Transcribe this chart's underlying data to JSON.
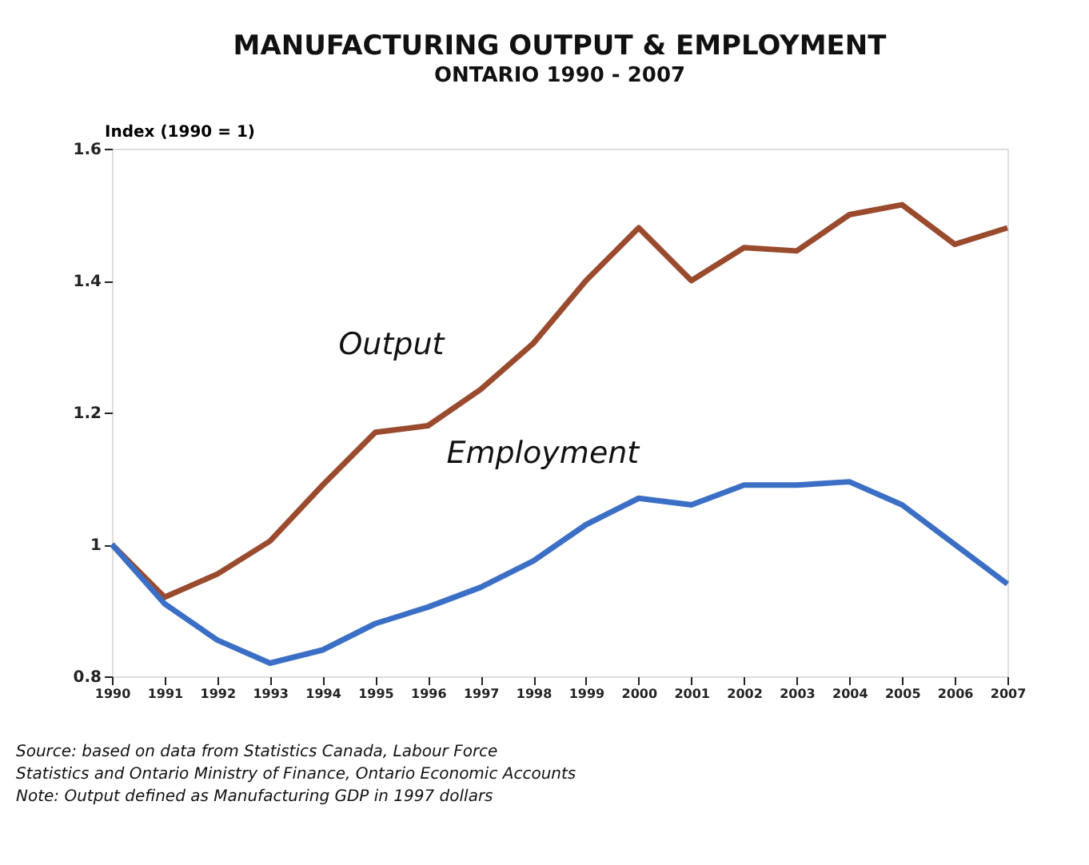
{
  "chart_data": {
    "type": "line",
    "title": "MANUFACTURING OUTPUT & EMPLOYMENT",
    "subtitle": "ONTARIO 1990 - 2007",
    "ylabel": "Index (1990 = 1)",
    "x": [
      1990,
      1991,
      1992,
      1993,
      1994,
      1995,
      1996,
      1997,
      1998,
      1999,
      2000,
      2001,
      2002,
      2003,
      2004,
      2005,
      2006,
      2007
    ],
    "series": [
      {
        "name": "Output",
        "color": "#9a4b2e",
        "values": [
          1.0,
          0.92,
          0.955,
          1.005,
          1.09,
          1.17,
          1.18,
          1.235,
          1.305,
          1.4,
          1.48,
          1.4,
          1.45,
          1.445,
          1.5,
          1.515,
          1.455,
          1.48
        ]
      },
      {
        "name": "Employment",
        "color": "#3b6fc6",
        "values": [
          1.0,
          0.91,
          0.855,
          0.82,
          0.84,
          0.88,
          0.905,
          0.935,
          0.975,
          1.03,
          1.07,
          1.06,
          1.09,
          1.09,
          1.095,
          1.06,
          1.0,
          0.94
        ]
      }
    ],
    "xlim": [
      1990,
      2007
    ],
    "xticks": [
      1990,
      1991,
      1992,
      1993,
      1994,
      1995,
      1996,
      1997,
      1998,
      1999,
      2000,
      2001,
      2002,
      2003,
      2004,
      2005,
      2006,
      2007
    ],
    "ylim": [
      0.8,
      1.6
    ],
    "yticks": [
      0.8,
      1,
      1.2,
      1.4,
      1.6
    ],
    "marker": "none",
    "line_style": "solid",
    "annotations": [
      "Source:  based on data from Statistics Canada, Labour Force",
      "Statistics and Ontario Ministry of Finance, Ontario Economic Accounts",
      "Note:     Output defined as Manufacturing GDP in 1997 dollars"
    ]
  }
}
